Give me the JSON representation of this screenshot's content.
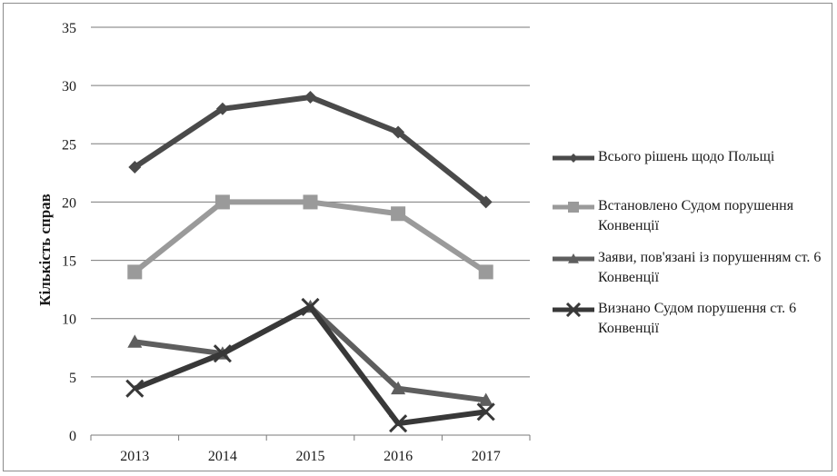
{
  "chart_data": {
    "type": "line",
    "categories": [
      "2013",
      "2014",
      "2015",
      "2016",
      "2017"
    ],
    "ylabel": "Кількість справ",
    "xlabel": "",
    "ylim": [
      0,
      35
    ],
    "yticks": [
      0,
      5,
      10,
      15,
      20,
      25,
      30,
      35
    ],
    "grid": "horizontal",
    "legend_position": "right",
    "series": [
      {
        "name": "Всього рішень щодо Польщі",
        "values": [
          23,
          28,
          29,
          26,
          20
        ],
        "color": "#4a4a4a",
        "marker": "diamond"
      },
      {
        "name": "Встановлено Судом порушення Конвенції",
        "values": [
          14,
          20,
          20,
          19,
          14
        ],
        "color": "#9a9a9a",
        "marker": "square"
      },
      {
        "name": "Заяви, пов'язані із порушенням ст. 6 Конвенції",
        "values": [
          8,
          7,
          11,
          4,
          3
        ],
        "color": "#5e5e5e",
        "marker": "triangle"
      },
      {
        "name": "Визнано Судом порушення ст. 6 Конвенції",
        "values": [
          4,
          7,
          11,
          1,
          2
        ],
        "color": "#383838",
        "marker": "x"
      }
    ]
  }
}
